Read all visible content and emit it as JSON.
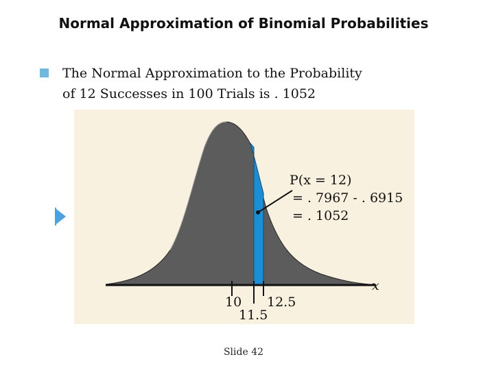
{
  "slide": {
    "title": "Normal Approximation of Binomial Probabilities",
    "bullet_line1": "The Normal Approximation to the Probability",
    "bullet_line2": "of 12 Successes in 100 Trials is . 1052",
    "footer": "Slide 42"
  },
  "figure": {
    "annotation_line1": "P(x = 12)",
    "annotation_line2": "= . 7967 - . 6915",
    "annotation_line3": "= . 1052",
    "x_axis_label": "x",
    "tick_10": "10",
    "tick_11_5": "11.5",
    "tick_12_5": "12.5",
    "curve_color": "#5c5c5c",
    "shaded_color": "#1a8fd6",
    "background_color": "#f9f1df"
  }
}
